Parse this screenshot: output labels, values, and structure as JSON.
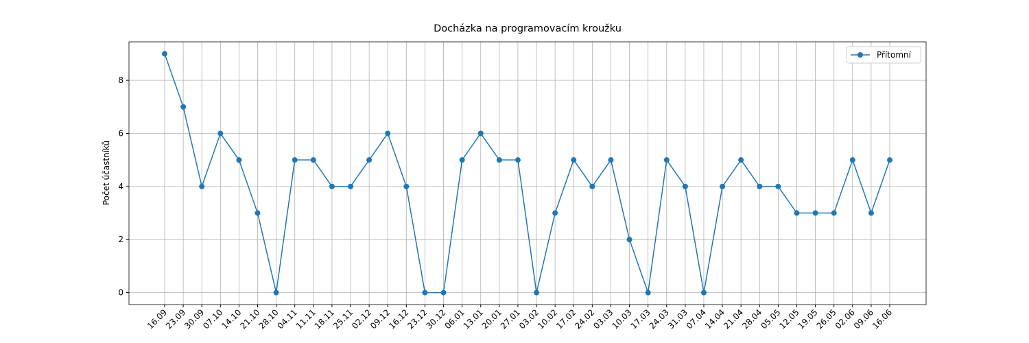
{
  "chart_data": {
    "type": "line",
    "title": "Docházka na programovacím kroužku",
    "ylabel": "Počet účastníků",
    "categories": [
      "16.09",
      "23.09",
      "30.09",
      "07.10",
      "14.10",
      "21.10",
      "28.10",
      "04.11",
      "11.11",
      "18.11",
      "25.11",
      "02.12",
      "09.12",
      "16.12",
      "23.12",
      "30.12",
      "06.01",
      "13.01",
      "20.01",
      "27.01",
      "03.02",
      "10.02",
      "17.02",
      "24.02",
      "03.03",
      "10.03",
      "17.03",
      "24.03",
      "31.03",
      "07.04",
      "14.04",
      "21.04",
      "28.04",
      "05.05",
      "12.05",
      "19.05",
      "26.05",
      "02.06",
      "09.06",
      "16.06"
    ],
    "series": [
      {
        "name": "Přítomní",
        "color": "#1f77b4",
        "values": [
          9,
          7,
          4,
          6,
          5,
          3,
          0,
          5,
          5,
          4,
          4,
          5,
          6,
          4,
          0,
          0,
          5,
          6,
          5,
          5,
          0,
          3,
          5,
          4,
          5,
          2,
          0,
          5,
          4,
          0,
          4,
          5,
          4,
          4,
          3,
          3,
          3,
          5,
          3,
          5
        ]
      }
    ],
    "ylim": [
      -0.45,
      9.45
    ],
    "yticks": [
      0,
      2,
      4,
      6,
      8
    ],
    "grid": true,
    "legend": "upper right"
  }
}
